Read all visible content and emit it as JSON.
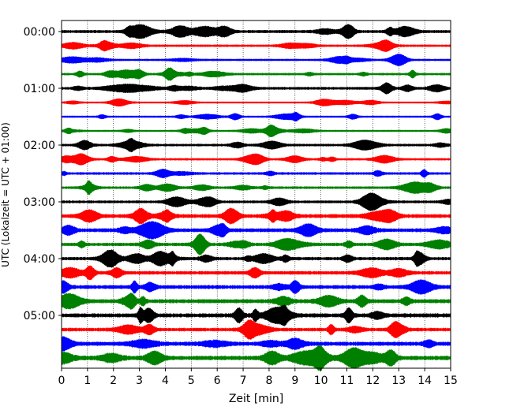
{
  "chart_data": {
    "type": "line",
    "title": "",
    "xlabel": "Zeit  [min]",
    "ylabel": "UTC (Lokalzeit = UTC + 01:00)",
    "xlim": [
      0,
      15
    ],
    "x_ticks": [
      0,
      1,
      2,
      3,
      4,
      5,
      6,
      7,
      8,
      9,
      10,
      11,
      12,
      13,
      14,
      15
    ],
    "x_tick_labels": [
      "0",
      "1",
      "2",
      "3",
      "4",
      "5",
      "6",
      "7",
      "8",
      "9",
      "10",
      "11",
      "12",
      "13",
      "14",
      "15"
    ],
    "y_tick_labels": [
      "00:00",
      "01:00",
      "02:00",
      "03:00",
      "04:00",
      "05:00"
    ],
    "y_tick_positions": [
      0,
      4,
      8,
      12,
      16,
      20
    ],
    "x_grid": true,
    "trace_interval_min": 15,
    "trace_colors": [
      "#000000",
      "#ff0000",
      "#0000ff",
      "#008000"
    ],
    "traces": [
      {
        "start": "00:00",
        "amplitude": 1.2
      },
      {
        "start": "00:15",
        "amplitude": 0.9
      },
      {
        "start": "00:30",
        "amplitude": 0.8
      },
      {
        "start": "00:45",
        "amplitude": 0.9
      },
      {
        "start": "01:00",
        "amplitude": 1.1
      },
      {
        "start": "01:15",
        "amplitude": 0.6
      },
      {
        "start": "01:30",
        "amplitude": 0.7
      },
      {
        "start": "01:45",
        "amplitude": 0.7
      },
      {
        "start": "02:00",
        "amplitude": 1.0
      },
      {
        "start": "02:15",
        "amplitude": 0.9
      },
      {
        "start": "02:30",
        "amplitude": 1.0
      },
      {
        "start": "02:45",
        "amplitude": 1.0
      },
      {
        "start": "03:00",
        "amplitude": 1.1
      },
      {
        "start": "03:15",
        "amplitude": 1.5
      },
      {
        "start": "03:30",
        "amplitude": 1.5
      },
      {
        "start": "03:45",
        "amplitude": 1.3
      },
      {
        "start": "04:00",
        "amplitude": 1.3
      },
      {
        "start": "04:15",
        "amplitude": 1.4
      },
      {
        "start": "04:30",
        "amplitude": 1.5
      },
      {
        "start": "04:45",
        "amplitude": 1.6
      },
      {
        "start": "05:00",
        "amplitude": 1.6
      },
      {
        "start": "05:15",
        "amplitude": 1.4
      },
      {
        "start": "05:30",
        "amplitude": 1.6
      },
      {
        "start": "05:45",
        "amplitude": 1.7
      }
    ]
  }
}
